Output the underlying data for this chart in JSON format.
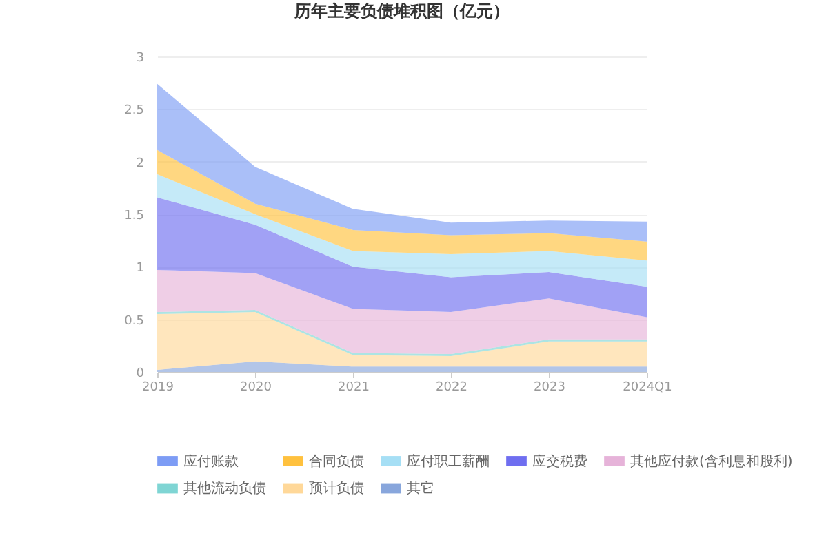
{
  "chart_data": {
    "type": "area",
    "title": "历年主要负债堆积图（亿元）",
    "stacked": true,
    "categories": [
      "2019",
      "2020",
      "2021",
      "2022",
      "2023",
      "2024Q1"
    ],
    "series": [
      {
        "name": "其它",
        "color": "#88a6dc",
        "values": [
          0.02,
          0.1,
          0.05,
          0.05,
          0.05,
          0.05
        ]
      },
      {
        "name": "预计负债",
        "color": "#ffd899",
        "values": [
          0.53,
          0.47,
          0.11,
          0.1,
          0.24,
          0.24
        ]
      },
      {
        "name": "其他流动负债",
        "color": "#7fd5d4",
        "values": [
          0.02,
          0.02,
          0.02,
          0.02,
          0.02,
          0.02
        ]
      },
      {
        "name": "其他应付款(含利息和股利)",
        "color": "#e6b3d9",
        "values": [
          0.4,
          0.35,
          0.42,
          0.4,
          0.39,
          0.21
        ]
      },
      {
        "name": "应交税费",
        "color": "#6f6ef0",
        "values": [
          0.69,
          0.46,
          0.4,
          0.33,
          0.25,
          0.29
        ]
      },
      {
        "name": "应付职工薪酬",
        "color": "#a6dff5",
        "values": [
          0.22,
          0.1,
          0.15,
          0.22,
          0.2,
          0.25
        ]
      },
      {
        "name": "合同负债",
        "color": "#ffc13e",
        "values": [
          0.23,
          0.1,
          0.2,
          0.18,
          0.17,
          0.18
        ]
      },
      {
        "name": "应付账款",
        "color": "#7d9cf5",
        "values": [
          0.63,
          0.35,
          0.2,
          0.12,
          0.12,
          0.19
        ]
      }
    ],
    "ylim": [
      0,
      3
    ],
    "yticks": [
      0,
      0.5,
      1,
      1.5,
      2,
      2.5,
      3
    ],
    "grid": "y",
    "legend": "bottom"
  }
}
